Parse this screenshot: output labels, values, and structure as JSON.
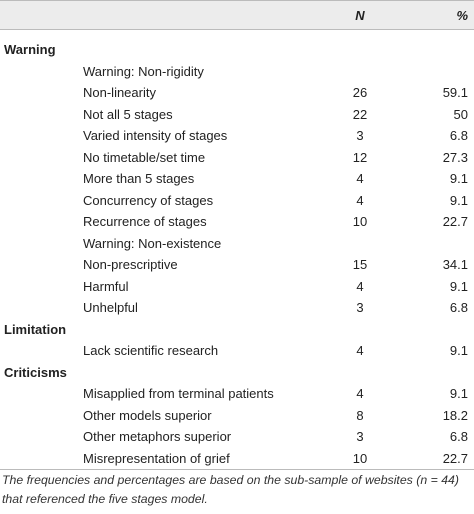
{
  "header": {
    "n": "N",
    "pct": "%"
  },
  "sections": [
    {
      "title": "Warning",
      "groups": [
        {
          "title": "Warning: Non-rigidity",
          "rows": [
            {
              "label": "Non-linearity",
              "n": 26,
              "pct": 59.1
            },
            {
              "label": "Not all 5 stages",
              "n": 22,
              "pct": 50
            },
            {
              "label": "Varied intensity of stages",
              "n": 3,
              "pct": 6.8
            },
            {
              "label": "No timetable/set time",
              "n": 12,
              "pct": 27.3
            },
            {
              "label": "More than 5 stages",
              "n": 4,
              "pct": 9.1
            },
            {
              "label": "Concurrency of stages",
              "n": 4,
              "pct": 9.1
            },
            {
              "label": "Recurrence of stages",
              "n": 10,
              "pct": 22.7
            }
          ]
        },
        {
          "title": "Warning: Non-existence",
          "rows": [
            {
              "label": "Non-prescriptive",
              "n": 15,
              "pct": 34.1
            },
            {
              "label": "Harmful",
              "n": 4,
              "pct": 9.1
            },
            {
              "label": "Unhelpful",
              "n": 3,
              "pct": 6.8
            }
          ]
        }
      ]
    },
    {
      "title": "Limitation",
      "groups": [
        {
          "rows": [
            {
              "label": "Lack scientific research",
              "n": 4,
              "pct": 9.1
            }
          ]
        }
      ]
    },
    {
      "title": "Criticisms",
      "groups": [
        {
          "rows": [
            {
              "label": "Misapplied from terminal patients",
              "n": 4,
              "pct": 9.1
            },
            {
              "label": "Other models superior",
              "n": 8,
              "pct": 18.2
            },
            {
              "label": "Other metaphors superior",
              "n": 3,
              "pct": 6.8
            },
            {
              "label": "Misrepresentation of grief",
              "n": 10,
              "pct": 22.7
            }
          ]
        }
      ]
    }
  ],
  "footnote": "The frequencies and percentages are based on the sub-sample of websites (n = 44) that referenced the five stages model."
}
